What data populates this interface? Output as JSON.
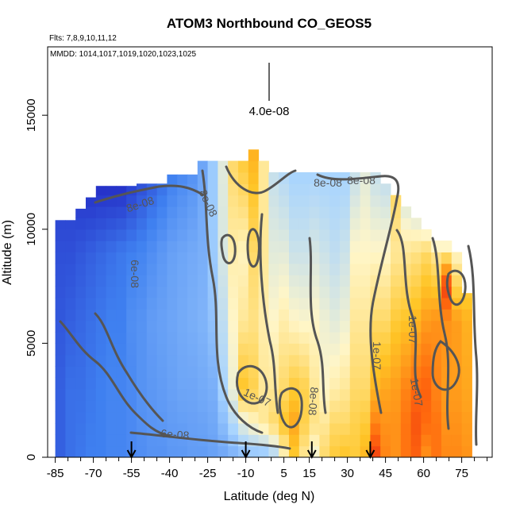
{
  "chart_data": {
    "type": "heatmap",
    "title": "ATOM3 Northbound CO_GEOS5",
    "subtitle_flights": "Flts: 7,8,9,10,11,12",
    "subtitle_dates": "MMDD: 1014,1017,1019,1020,1023,1025",
    "xlabel": "Latitude (deg N)",
    "ylabel": "Altitude (m)",
    "xlim": [
      -88,
      87
    ],
    "ylim": [
      0,
      18000
    ],
    "x_ticks": [
      -85,
      -70,
      -55,
      -40,
      -25,
      -10,
      5,
      15,
      30,
      45,
      60,
      75
    ],
    "x_tick_labels": [
      "-85",
      "-70",
      "-55",
      "-40",
      "-25",
      "-10",
      "5",
      "15",
      "30",
      "45",
      "60",
      "75"
    ],
    "y_ticks": [
      0,
      5000,
      10000,
      15000
    ],
    "y_tick_labels": [
      "0",
      "5000",
      "10000",
      "15000"
    ],
    "scale_bar_label": "4.0e-08",
    "contour_labels": [
      "8e-08",
      "8e-08",
      "8e-08",
      "6e-08",
      "1e-07",
      "8e-08",
      "1e-07",
      "1e-07",
      "1e-07",
      "8e-08",
      "6e-08"
    ],
    "arrow_latitudes": [
      -55,
      -10,
      16,
      39
    ],
    "colors": {
      "low_dark": "#1f1fbf",
      "low": "#3f80f0",
      "mid_low": "#a8d4ff",
      "mid": "#fff6c8",
      "mid_high": "#ffc526",
      "high": "#ff6a0e",
      "very_high": "#e41414",
      "contour": "#555555"
    },
    "columns": [
      {
        "lat": -83,
        "top": 10400,
        "profile": [
          [
            0,
            0.08
          ],
          [
            3000,
            0.08
          ],
          [
            6000,
            0.07
          ],
          [
            9000,
            0.06
          ],
          [
            10400,
            0.05
          ]
        ]
      },
      {
        "lat": -79,
        "top": 10400,
        "profile": [
          [
            0,
            0.1
          ],
          [
            3000,
            0.1
          ],
          [
            6000,
            0.08
          ],
          [
            9000,
            0.06
          ],
          [
            10400,
            0.05
          ]
        ]
      },
      {
        "lat": -75,
        "top": 10900,
        "profile": [
          [
            0,
            0.11
          ],
          [
            3000,
            0.1
          ],
          [
            6000,
            0.09
          ],
          [
            9000,
            0.07
          ],
          [
            10900,
            0.04
          ]
        ]
      },
      {
        "lat": -71,
        "top": 11400,
        "profile": [
          [
            0,
            0.12
          ],
          [
            3000,
            0.11
          ],
          [
            6000,
            0.1
          ],
          [
            9000,
            0.08
          ],
          [
            11400,
            0.03
          ]
        ]
      },
      {
        "lat": -67,
        "top": 11900,
        "profile": [
          [
            0,
            0.12
          ],
          [
            3000,
            0.12
          ],
          [
            6000,
            0.11
          ],
          [
            9000,
            0.09
          ],
          [
            11900,
            0.02
          ]
        ]
      },
      {
        "lat": -63,
        "top": 11900,
        "profile": [
          [
            0,
            0.13
          ],
          [
            3000,
            0.13
          ],
          [
            6000,
            0.12
          ],
          [
            9000,
            0.1
          ],
          [
            11900,
            0.02
          ]
        ]
      },
      {
        "lat": -59,
        "top": 11900,
        "profile": [
          [
            0,
            0.13
          ],
          [
            3000,
            0.13
          ],
          [
            6000,
            0.12
          ],
          [
            9000,
            0.11
          ],
          [
            11900,
            0.02
          ]
        ]
      },
      {
        "lat": -55,
        "top": 11900,
        "profile": [
          [
            0,
            0.14
          ],
          [
            3000,
            0.14
          ],
          [
            6000,
            0.15
          ],
          [
            9000,
            0.12
          ],
          [
            11900,
            0.04
          ]
        ]
      },
      {
        "lat": -51,
        "top": 12000,
        "profile": [
          [
            0,
            0.15
          ],
          [
            3000,
            0.16
          ],
          [
            6000,
            0.16
          ],
          [
            9000,
            0.13
          ],
          [
            12000,
            0.06
          ]
        ]
      },
      {
        "lat": -47,
        "top": 12000,
        "profile": [
          [
            0,
            0.16
          ],
          [
            3000,
            0.17
          ],
          [
            6000,
            0.18
          ],
          [
            9000,
            0.15
          ],
          [
            12000,
            0.08
          ]
        ]
      },
      {
        "lat": -43,
        "top": 12000,
        "profile": [
          [
            0,
            0.16
          ],
          [
            3000,
            0.18
          ],
          [
            6000,
            0.19
          ],
          [
            9000,
            0.17
          ],
          [
            12000,
            0.1
          ]
        ]
      },
      {
        "lat": -39,
        "top": 12400,
        "profile": [
          [
            0,
            0.17
          ],
          [
            3000,
            0.19
          ],
          [
            6000,
            0.2
          ],
          [
            9000,
            0.19
          ],
          [
            12400,
            0.12
          ]
        ]
      },
      {
        "lat": -35,
        "top": 12400,
        "profile": [
          [
            0,
            0.17
          ],
          [
            3000,
            0.2
          ],
          [
            6000,
            0.21
          ],
          [
            9000,
            0.2
          ],
          [
            12400,
            0.14
          ]
        ]
      },
      {
        "lat": -31,
        "top": 12400,
        "profile": [
          [
            0,
            0.18
          ],
          [
            3000,
            0.2
          ],
          [
            6000,
            0.22
          ],
          [
            9000,
            0.21
          ],
          [
            12400,
            0.16
          ]
        ]
      },
      {
        "lat": -27,
        "top": 13000,
        "profile": [
          [
            0,
            0.18
          ],
          [
            3000,
            0.21
          ],
          [
            6000,
            0.23
          ],
          [
            9000,
            0.22
          ],
          [
            13000,
            0.2
          ]
        ]
      },
      {
        "lat": -23,
        "top": 13000,
        "profile": [
          [
            0,
            0.19
          ],
          [
            3000,
            0.22
          ],
          [
            6000,
            0.26
          ],
          [
            9000,
            0.28
          ],
          [
            13000,
            0.28
          ]
        ]
      },
      {
        "lat": -19,
        "top": 13000,
        "profile": [
          [
            0,
            0.2
          ],
          [
            3000,
            0.3
          ],
          [
            6000,
            0.34
          ],
          [
            9000,
            0.38
          ],
          [
            13000,
            0.4
          ]
        ]
      },
      {
        "lat": -15,
        "top": 13000,
        "profile": [
          [
            0,
            0.22
          ],
          [
            3000,
            0.42
          ],
          [
            6000,
            0.45
          ],
          [
            9000,
            0.48
          ],
          [
            13000,
            0.55
          ]
        ]
      },
      {
        "lat": -11,
        "top": 13000,
        "profile": [
          [
            0,
            0.24
          ],
          [
            1500,
            0.4
          ],
          [
            3000,
            0.62
          ],
          [
            6000,
            0.5
          ],
          [
            9000,
            0.46
          ],
          [
            13000,
            0.6
          ]
        ]
      },
      {
        "lat": -7,
        "top": 13500,
        "profile": [
          [
            0,
            0.25
          ],
          [
            1500,
            0.45
          ],
          [
            3000,
            0.58
          ],
          [
            6000,
            0.52
          ],
          [
            9000,
            0.55
          ],
          [
            13500,
            0.66
          ]
        ]
      },
      {
        "lat": -3,
        "top": 13000,
        "profile": [
          [
            0,
            0.25
          ],
          [
            1500,
            0.5
          ],
          [
            3000,
            0.5
          ],
          [
            6000,
            0.48
          ],
          [
            9000,
            0.5
          ],
          [
            13000,
            0.5
          ]
        ]
      },
      {
        "lat": 1,
        "top": 12500,
        "profile": [
          [
            0,
            0.3
          ],
          [
            1500,
            0.55
          ],
          [
            3000,
            0.5
          ],
          [
            6000,
            0.45
          ],
          [
            9000,
            0.4
          ],
          [
            12500,
            0.35
          ]
        ]
      },
      {
        "lat": 5,
        "top": 12500,
        "profile": [
          [
            0,
            0.45
          ],
          [
            1500,
            0.62
          ],
          [
            3000,
            0.55
          ],
          [
            6000,
            0.48
          ],
          [
            9000,
            0.4
          ],
          [
            12500,
            0.32
          ]
        ]
      },
      {
        "lat": 9,
        "top": 12500,
        "profile": [
          [
            0,
            0.6
          ],
          [
            1500,
            0.68
          ],
          [
            3000,
            0.6
          ],
          [
            6000,
            0.45
          ],
          [
            9000,
            0.36
          ],
          [
            12500,
            0.3
          ]
        ]
      },
      {
        "lat": 13,
        "top": 12500,
        "profile": [
          [
            0,
            0.5
          ],
          [
            1500,
            0.58
          ],
          [
            3000,
            0.58
          ],
          [
            6000,
            0.44
          ],
          [
            9000,
            0.36
          ],
          [
            12500,
            0.3
          ]
        ]
      },
      {
        "lat": 17,
        "top": 12500,
        "profile": [
          [
            0,
            0.42
          ],
          [
            1500,
            0.52
          ],
          [
            3000,
            0.5
          ],
          [
            6000,
            0.45
          ],
          [
            9000,
            0.38
          ],
          [
            12500,
            0.3
          ]
        ]
      },
      {
        "lat": 21,
        "top": 12500,
        "profile": [
          [
            0,
            0.55
          ],
          [
            1500,
            0.5
          ],
          [
            3000,
            0.45
          ],
          [
            6000,
            0.42
          ],
          [
            9000,
            0.36
          ],
          [
            12500,
            0.3
          ]
        ]
      },
      {
        "lat": 25,
        "top": 12500,
        "profile": [
          [
            0,
            0.6
          ],
          [
            1500,
            0.55
          ],
          [
            3000,
            0.48
          ],
          [
            6000,
            0.4
          ],
          [
            9000,
            0.34
          ],
          [
            12500,
            0.3
          ]
        ]
      },
      {
        "lat": 29,
        "top": 12500,
        "profile": [
          [
            0,
            0.62
          ],
          [
            1500,
            0.55
          ],
          [
            3000,
            0.5
          ],
          [
            6000,
            0.42
          ],
          [
            9000,
            0.36
          ],
          [
            12500,
            0.3
          ]
        ]
      },
      {
        "lat": 33,
        "top": 12500,
        "profile": [
          [
            0,
            0.6
          ],
          [
            1500,
            0.58
          ],
          [
            3000,
            0.55
          ],
          [
            6000,
            0.5
          ],
          [
            9000,
            0.45
          ],
          [
            12500,
            0.35
          ]
        ]
      },
      {
        "lat": 37,
        "top": 12500,
        "profile": [
          [
            0,
            0.65
          ],
          [
            1500,
            0.6
          ],
          [
            3000,
            0.55
          ],
          [
            6000,
            0.5
          ],
          [
            9000,
            0.45
          ],
          [
            12500,
            0.4
          ]
        ]
      },
      {
        "lat": 41,
        "top": 12500,
        "profile": [
          [
            0,
            0.9
          ],
          [
            1500,
            0.75
          ],
          [
            3000,
            0.65
          ],
          [
            6000,
            0.55
          ],
          [
            9000,
            0.45
          ],
          [
            12500,
            0.35
          ]
        ]
      },
      {
        "lat": 45,
        "top": 12000,
        "profile": [
          [
            0,
            0.75
          ],
          [
            1500,
            0.72
          ],
          [
            3000,
            0.68
          ],
          [
            6000,
            0.55
          ],
          [
            9000,
            0.45
          ],
          [
            12000,
            0.35
          ]
        ]
      },
      {
        "lat": 49,
        "top": 11500,
        "profile": [
          [
            0,
            0.72
          ],
          [
            1500,
            0.72
          ],
          [
            3000,
            0.7
          ],
          [
            6000,
            0.6
          ],
          [
            9000,
            0.5
          ],
          [
            11500,
            0.55
          ]
        ]
      },
      {
        "lat": 53,
        "top": 11000,
        "profile": [
          [
            0,
            0.78
          ],
          [
            1500,
            0.78
          ],
          [
            3000,
            0.75
          ],
          [
            6000,
            0.62
          ],
          [
            9000,
            0.5
          ],
          [
            11000,
            0.4
          ]
        ]
      },
      {
        "lat": 57,
        "top": 10500,
        "profile": [
          [
            0,
            0.82
          ],
          [
            1500,
            0.85
          ],
          [
            3000,
            0.8
          ],
          [
            6000,
            0.65
          ],
          [
            9000,
            0.52
          ],
          [
            10500,
            0.4
          ]
        ]
      },
      {
        "lat": 61,
        "top": 10000,
        "profile": [
          [
            0,
            0.72
          ],
          [
            1500,
            0.8
          ],
          [
            3000,
            0.82
          ],
          [
            6000,
            0.7
          ],
          [
            9000,
            0.55
          ],
          [
            10000,
            0.42
          ]
        ]
      },
      {
        "lat": 65,
        "top": 9500,
        "profile": [
          [
            0,
            0.78
          ],
          [
            1500,
            0.78
          ],
          [
            3000,
            0.75
          ],
          [
            6000,
            0.72
          ],
          [
            9000,
            0.5
          ],
          [
            9500,
            0.4
          ]
        ]
      },
      {
        "lat": 69,
        "top": 9500,
        "profile": [
          [
            0,
            0.74
          ],
          [
            1500,
            0.72
          ],
          [
            3000,
            0.7
          ],
          [
            6000,
            0.72
          ],
          [
            7500,
            0.9
          ],
          [
            9000,
            0.5
          ],
          [
            9500,
            0.4
          ]
        ]
      },
      {
        "lat": 73,
        "top": 9000,
        "profile": [
          [
            0,
            0.74
          ],
          [
            1500,
            0.72
          ],
          [
            3000,
            0.7
          ],
          [
            6000,
            0.7
          ],
          [
            9000,
            0.45
          ]
        ]
      },
      {
        "lat": 77,
        "top": 7200,
        "profile": [
          [
            0,
            0.72
          ],
          [
            1500,
            0.7
          ],
          [
            3000,
            0.68
          ],
          [
            6000,
            0.66
          ],
          [
            7200,
            0.6
          ]
        ]
      }
    ]
  }
}
